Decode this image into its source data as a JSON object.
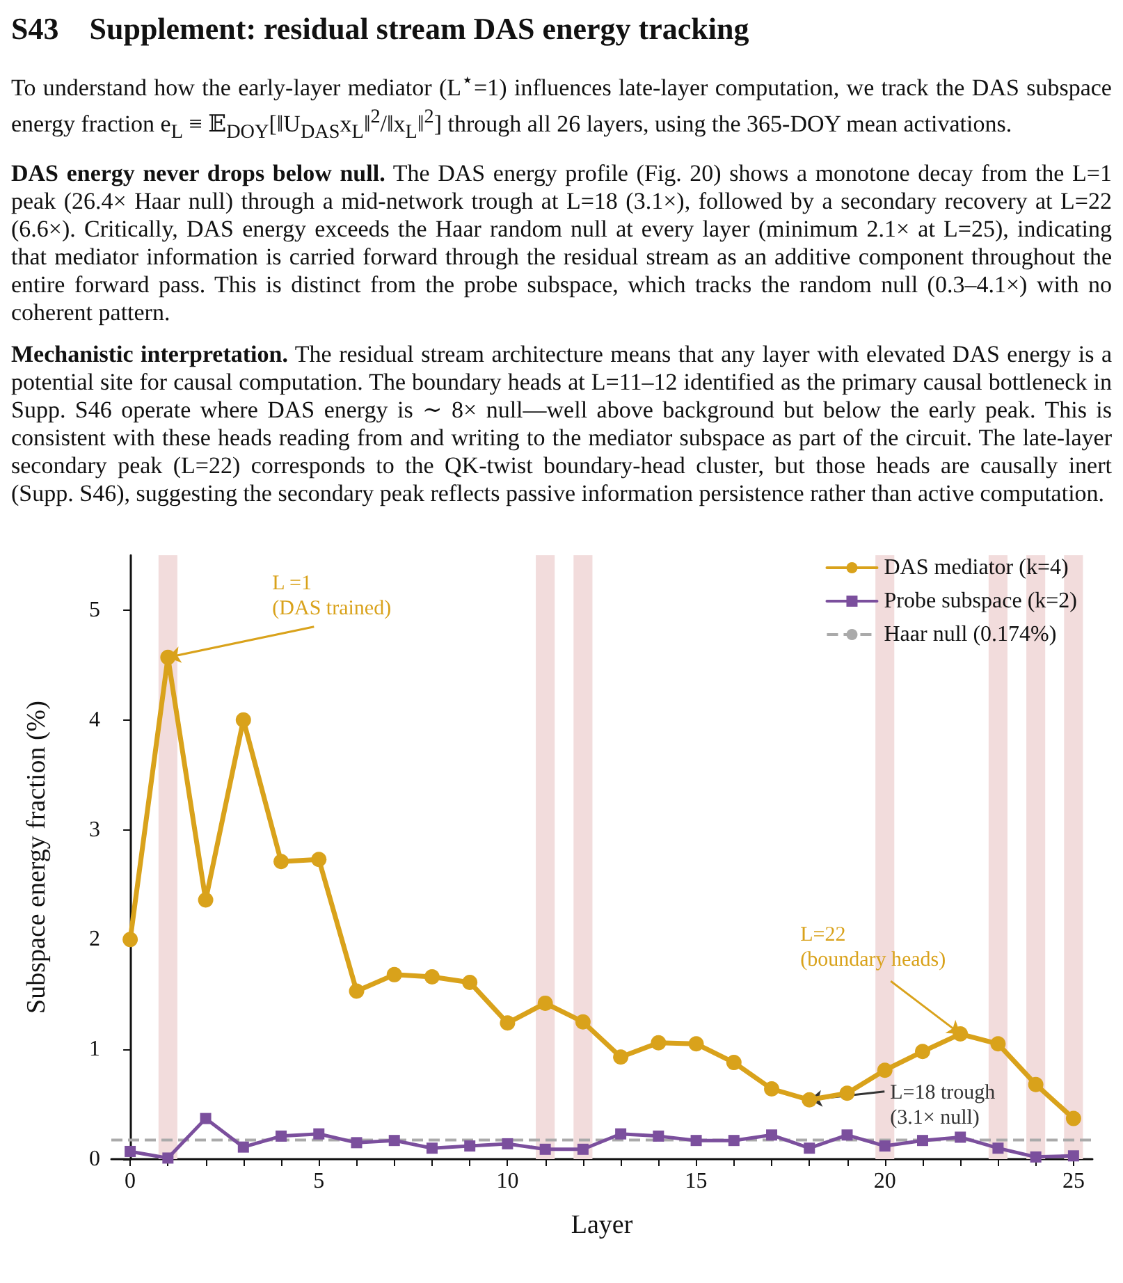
{
  "chart_data": {
    "type": "line",
    "title": "S43    Supplement: residual stream DAS energy tracking",
    "subtitle": "To understand how the early-layer mediator (L$^{⋆}$=1) influences late-layer computation, we track the DAS subspace energy fraction e$_{L}$ ≡ 𝔼$_{DOY}$[‖U$_{DAS}$x$_{L}$‖$^{2}$/‖x$_{L}$‖$^{2}$] through all 26 layers, using the 365-DOY mean activations.",
    "annotations": [
      "DAS energy never drops below null. The DAS energy profile (Fig. 20) shows a monotone decay from the L=1 peak (26.4× Haar null) through a mid-network trough at L=18 (3.1×), followed by a secondary recovery at L=22 (6.6×). Critically, DAS energy exceeds the Haar random null at every layer (minimum 2.1× at L=25), indicating that mediator information is carried forward through the residual stream as an additive component throughout the entire forward pass. This is distinct from the probe subspace, which tracks the random null (0.3–4.1×) with no coherent pattern.",
      "Mechanistic interpretation. The residual stream architecture means that any layer with elevated DAS energy is a potential site for causal computation. The boundary heads at L=11–12 identified as the primary causal bottleneck in Supp. S46 operate where DAS energy is ∼ 8× null—well above background but below the early peak. This is consistent with these heads reading from and writing to the mediator subspace as part of the circuit. The late-layer secondary peak (L=22) corresponds to the QK-twist boundary-head cluster, but those heads are causally inert (Supp. S46), suggesting the secondary peak reflects passive information persistence rather than active computation.",
      {
        "text": "L =1\n(DAS trained)",
        "x": 1,
        "y": 4.57
      },
      {
        "text": "L=22\n(boundary heads)",
        "x": 22,
        "y": 1.14
      },
      {
        "text": "L=18 trough\n(3.1× null)",
        "x": 18,
        "y": 0.54
      }
    ],
    "xlabel": "Layer",
    "ylabel": "Subspace energy fraction (%)",
    "x": [
      0,
      1,
      2,
      3,
      4,
      5,
      6,
      7,
      8,
      9,
      10,
      11,
      12,
      13,
      14,
      15,
      16,
      17,
      18,
      19,
      20,
      21,
      22,
      23,
      24,
      25
    ],
    "series": [
      {
        "name": "DAS mediator (k=4)",
        "color": "#d9a21b",
        "marker": "circle",
        "values": [
          2.0,
          4.57,
          2.36,
          4.0,
          2.71,
          2.73,
          1.53,
          1.68,
          1.66,
          1.61,
          1.24,
          1.42,
          1.25,
          0.93,
          1.06,
          1.05,
          0.88,
          0.64,
          0.54,
          0.6,
          0.81,
          0.98,
          1.14,
          1.05,
          0.68,
          0.37
        ]
      },
      {
        "name": "Probe subspace (k=2)",
        "color": "#7b4f9d",
        "marker": "square",
        "values": [
          0.07,
          0.01,
          0.37,
          0.11,
          0.21,
          0.23,
          0.15,
          0.17,
          0.1,
          0.12,
          0.14,
          0.09,
          0.09,
          0.23,
          0.21,
          0.17,
          0.17,
          0.22,
          0.1,
          0.22,
          0.12,
          0.17,
          0.2,
          0.1,
          0.02,
          0.03
        ]
      }
    ],
    "ref_lines": [
      {
        "axis": "y",
        "value": 0.174,
        "label": "Haar null (0.174%)",
        "color": "#aaaaaa",
        "line_style": "dashed"
      }
    ],
    "bands": [
      {
        "axis": "x",
        "from": 0.75,
        "to": 1.25,
        "color": "#f2dcdc"
      },
      {
        "axis": "x",
        "from": 10.75,
        "to": 11.25,
        "color": "#f2dcdc"
      },
      {
        "axis": "x",
        "from": 11.75,
        "to": 12.25,
        "color": "#f2dcdc"
      },
      {
        "axis": "x",
        "from": 19.75,
        "to": 20.25,
        "color": "#f2dcdc"
      },
      {
        "axis": "x",
        "from": 22.75,
        "to": 23.25,
        "color": "#f2dcdc"
      },
      {
        "axis": "x",
        "from": 23.75,
        "to": 24.25,
        "color": "#f2dcdc"
      },
      {
        "axis": "x",
        "from": 24.75,
        "to": 25.25,
        "color": "#f2dcdc"
      }
    ],
    "xlim": [
      -0.5,
      25.5
    ],
    "ylim": [
      0,
      5.5
    ],
    "xticks": [
      0,
      {
        "value": 1,
        "label": null
      },
      {
        "value": 2,
        "label": null
      },
      {
        "value": 3,
        "label": null
      },
      {
        "value": 4,
        "label": null
      },
      5,
      {
        "value": 6,
        "label": null
      },
      {
        "value": 7,
        "label": null
      },
      {
        "value": 8,
        "label": null
      },
      {
        "value": 9,
        "label": null
      },
      10,
      {
        "value": 11,
        "label": null
      },
      {
        "value": 12,
        "label": null
      },
      {
        "value": 13,
        "label": null
      },
      {
        "value": 14,
        "label": null
      },
      15,
      {
        "value": 16,
        "label": null
      },
      {
        "value": 17,
        "label": null
      },
      {
        "value": 18,
        "label": null
      },
      {
        "value": 19,
        "label": null
      },
      20,
      {
        "value": 21,
        "label": null
      },
      {
        "value": 22,
        "label": null
      },
      {
        "value": 23,
        "label": null
      },
      {
        "value": 24,
        "label": null
      },
      25
    ],
    "yticks": [
      0,
      1,
      2,
      3,
      4,
      5
    ],
    "legend": "top right",
    "grid": false,
    "line_style": "solid"
  }
}
